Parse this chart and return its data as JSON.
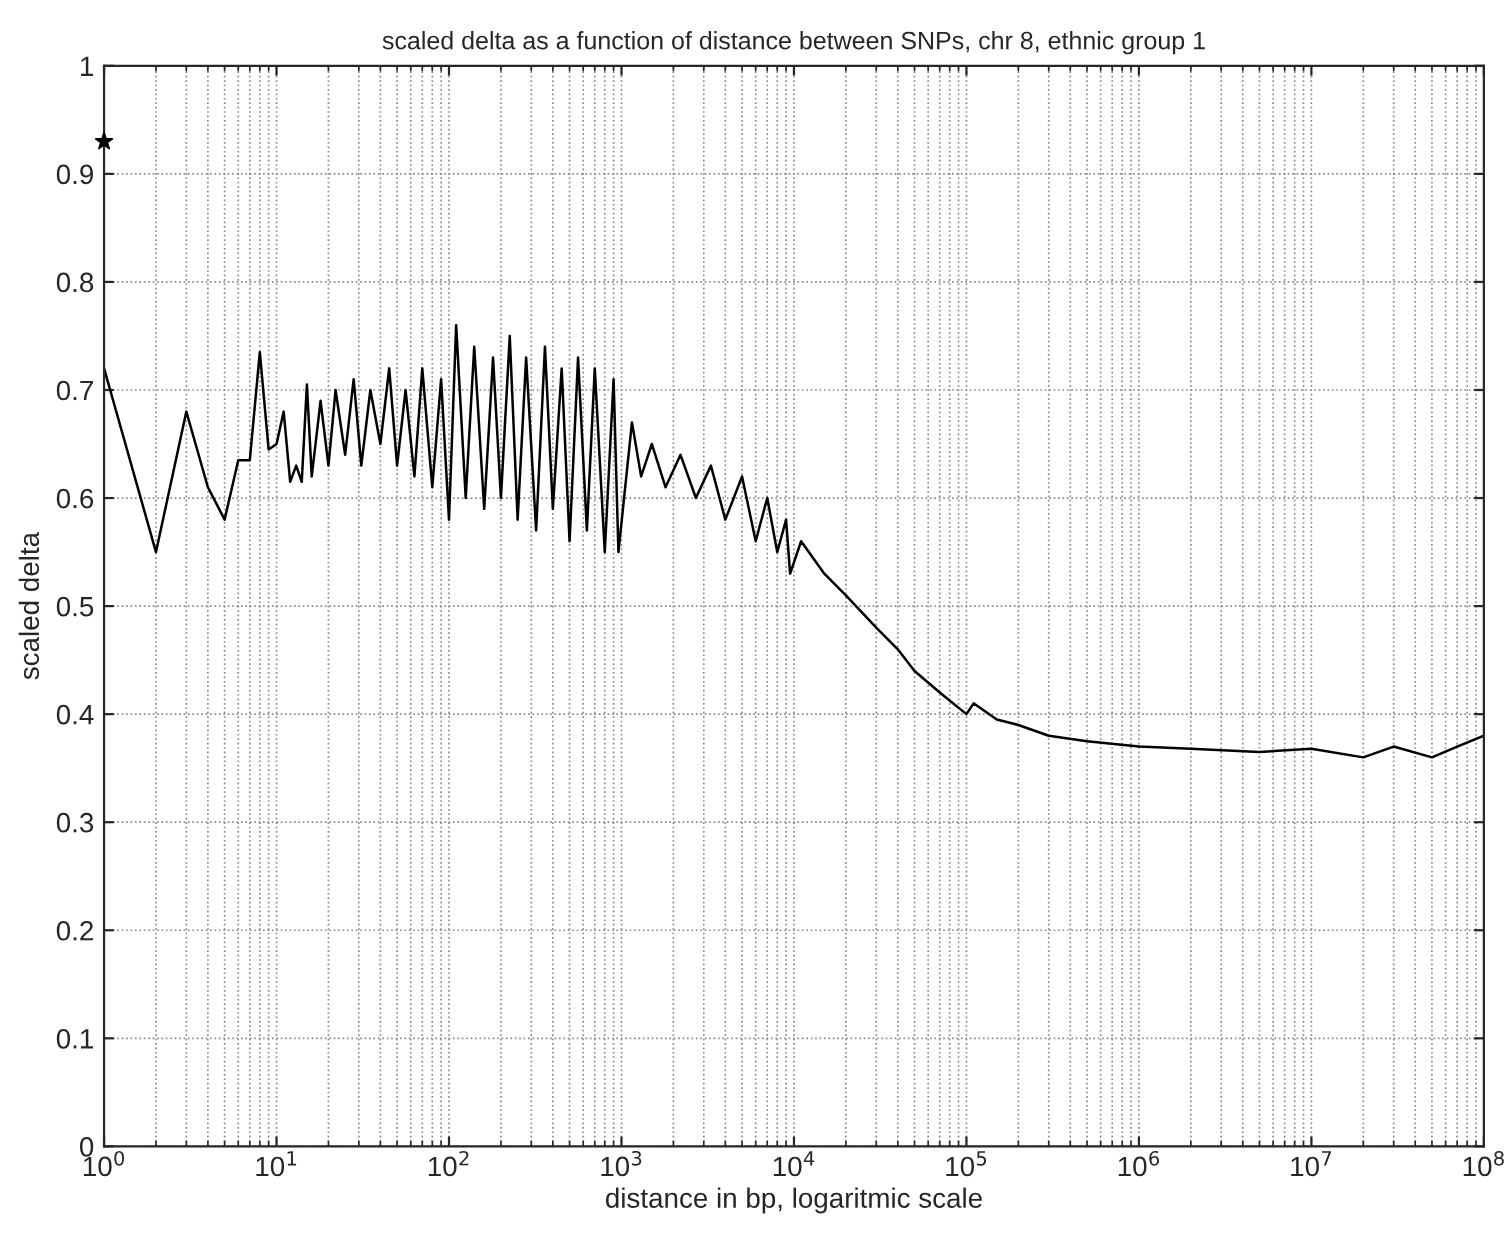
{
  "chart_data": {
    "type": "line",
    "title": "scaled delta as a function of distance between SNPs, chr 8, ethnic group 1",
    "xlabel": "distance in bp, logaritmic scale",
    "ylabel": "scaled delta",
    "log": "x",
    "grid": true,
    "xlim": [
      1,
      100000000
    ],
    "ylim": [
      0,
      1
    ],
    "xticks": [
      {
        "value": 1,
        "label": "10$^{0}$"
      },
      {
        "value": 10,
        "label": "10$^{1}$"
      },
      {
        "value": 100,
        "label": "10$^{2}$"
      },
      {
        "value": 1000,
        "label": "10$^{3}$"
      },
      {
        "value": 10000,
        "label": "10$^{4}$"
      },
      {
        "value": 100000,
        "label": "10$^{5}$"
      },
      {
        "value": 1000000,
        "label": "10$^{6}$"
      },
      {
        "value": 10000000,
        "label": "10$^{7}$"
      },
      {
        "value": 100000000,
        "label": "10$^{8}$"
      }
    ],
    "yticks": [
      0,
      0.1,
      0.2,
      0.3,
      0.4,
      0.5,
      0.6,
      0.7,
      0.8,
      0.9,
      1
    ],
    "series": [
      {
        "type": "line",
        "color": "#000000",
        "marker": "none",
        "x": [
          1,
          2,
          3,
          4,
          5,
          6,
          7,
          8,
          9,
          10,
          11,
          12,
          13,
          14,
          15,
          16,
          18,
          20,
          22,
          25,
          28,
          31,
          35,
          40,
          45,
          50,
          56,
          63,
          70,
          80,
          90,
          100,
          110,
          125,
          140,
          160,
          180,
          200,
          225,
          250,
          280,
          320,
          360,
          400,
          450,
          500,
          560,
          630,
          700,
          800,
          900,
          960,
          1150,
          1300,
          1500,
          1800,
          2200,
          2700,
          3300,
          4000,
          5000,
          6000,
          7000,
          8000,
          9000,
          9500,
          11000,
          15000,
          20000,
          30000,
          40000,
          50000,
          70000,
          100000,
          110000,
          150000,
          200000,
          300000,
          500000,
          1000000,
          2000000,
          5000000,
          10000000,
          20000000,
          30000000,
          50000000,
          70000000,
          100000000
        ],
        "values": [
          0.72,
          0.55,
          0.68,
          0.61,
          0.58,
          0.635,
          0.635,
          0.735,
          0.645,
          0.65,
          0.68,
          0.615,
          0.63,
          0.615,
          0.705,
          0.62,
          0.69,
          0.63,
          0.7,
          0.64,
          0.71,
          0.63,
          0.7,
          0.65,
          0.72,
          0.63,
          0.7,
          0.62,
          0.72,
          0.61,
          0.71,
          0.58,
          0.76,
          0.6,
          0.74,
          0.59,
          0.73,
          0.6,
          0.75,
          0.58,
          0.73,
          0.57,
          0.74,
          0.59,
          0.72,
          0.56,
          0.73,
          0.57,
          0.72,
          0.55,
          0.71,
          0.55,
          0.67,
          0.62,
          0.65,
          0.61,
          0.64,
          0.6,
          0.63,
          0.58,
          0.62,
          0.56,
          0.6,
          0.55,
          0.58,
          0.53,
          0.56,
          0.53,
          0.51,
          0.48,
          0.46,
          0.44,
          0.42,
          0.4,
          0.41,
          0.395,
          0.39,
          0.38,
          0.375,
          0.37,
          0.368,
          0.365,
          0.368,
          0.36,
          0.37,
          0.36,
          0.37,
          0.38
        ]
      },
      {
        "type": "scatter",
        "color": "#000000",
        "marker": "star",
        "x": [
          1
        ],
        "values": [
          0.93
        ]
      }
    ]
  }
}
